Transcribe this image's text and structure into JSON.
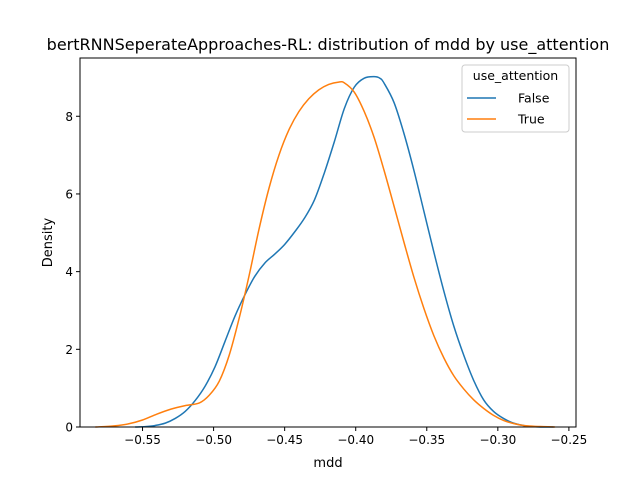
{
  "chart_data": {
    "type": "line",
    "title": "bertRNNSeperateApproaches-RL: distribution of mdd by use_attention",
    "xlabel": "mdd",
    "ylabel": "Density",
    "xlim": [
      -0.594,
      -0.245
    ],
    "ylim": [
      0,
      9.5
    ],
    "xticks": [
      -0.55,
      -0.5,
      -0.45,
      -0.4,
      -0.35,
      -0.3,
      -0.25
    ],
    "xtick_labels": [
      "−0.55",
      "−0.50",
      "−0.45",
      "−0.40",
      "−0.35",
      "−0.30",
      "−0.25"
    ],
    "yticks": [
      0,
      2,
      4,
      6,
      8
    ],
    "ytick_labels": [
      "0",
      "2",
      "4",
      "6",
      "8"
    ],
    "grid": false,
    "legend": {
      "title": "use_attention",
      "placement": "top-right"
    },
    "series": [
      {
        "name": "False",
        "color": "#1f77b4",
        "x": [
          -0.555,
          -0.548,
          -0.541,
          -0.534,
          -0.527,
          -0.52,
          -0.513,
          -0.506,
          -0.499,
          -0.492,
          -0.485,
          -0.478,
          -0.471,
          -0.464,
          -0.457,
          -0.45,
          -0.443,
          -0.436,
          -0.429,
          -0.422,
          -0.415,
          -0.408,
          -0.401,
          -0.394,
          -0.387,
          -0.383,
          -0.38,
          -0.373,
          -0.366,
          -0.359,
          -0.352,
          -0.345,
          -0.338,
          -0.331,
          -0.324,
          -0.317,
          -0.31,
          -0.303,
          -0.296,
          -0.289,
          -0.282,
          -0.275,
          -0.268,
          -0.261
        ],
        "y": [
          0.0,
          0.01,
          0.04,
          0.1,
          0.22,
          0.4,
          0.68,
          1.05,
          1.55,
          2.2,
          2.85,
          3.4,
          3.88,
          4.22,
          4.45,
          4.7,
          5.02,
          5.38,
          5.85,
          6.55,
          7.35,
          8.2,
          8.75,
          8.98,
          9.02,
          8.98,
          8.85,
          8.35,
          7.55,
          6.6,
          5.55,
          4.5,
          3.5,
          2.6,
          1.85,
          1.2,
          0.7,
          0.4,
          0.22,
          0.1,
          0.04,
          0.01,
          0.0,
          0.0
        ]
      },
      {
        "name": "True",
        "color": "#ff7f0e",
        "x": [
          -0.583,
          -0.57,
          -0.56,
          -0.55,
          -0.54,
          -0.53,
          -0.52,
          -0.51,
          -0.503,
          -0.496,
          -0.489,
          -0.482,
          -0.475,
          -0.468,
          -0.461,
          -0.454,
          -0.447,
          -0.44,
          -0.433,
          -0.426,
          -0.419,
          -0.412,
          -0.408,
          -0.401,
          -0.394,
          -0.387,
          -0.38,
          -0.373,
          -0.366,
          -0.359,
          -0.352,
          -0.345,
          -0.338,
          -0.331,
          -0.324,
          -0.317,
          -0.31,
          -0.303,
          -0.296,
          -0.289,
          -0.282,
          -0.275,
          -0.268,
          -0.26
        ],
        "y": [
          0.0,
          0.03,
          0.08,
          0.18,
          0.33,
          0.46,
          0.55,
          0.62,
          0.82,
          1.18,
          1.85,
          2.8,
          3.9,
          5.1,
          6.15,
          7.0,
          7.65,
          8.12,
          8.45,
          8.68,
          8.82,
          8.88,
          8.86,
          8.62,
          8.12,
          7.45,
          6.6,
          5.68,
          4.75,
          3.85,
          3.05,
          2.35,
          1.78,
          1.32,
          0.98,
          0.7,
          0.48,
          0.3,
          0.17,
          0.09,
          0.04,
          0.02,
          0.01,
          0.0
        ]
      }
    ]
  }
}
